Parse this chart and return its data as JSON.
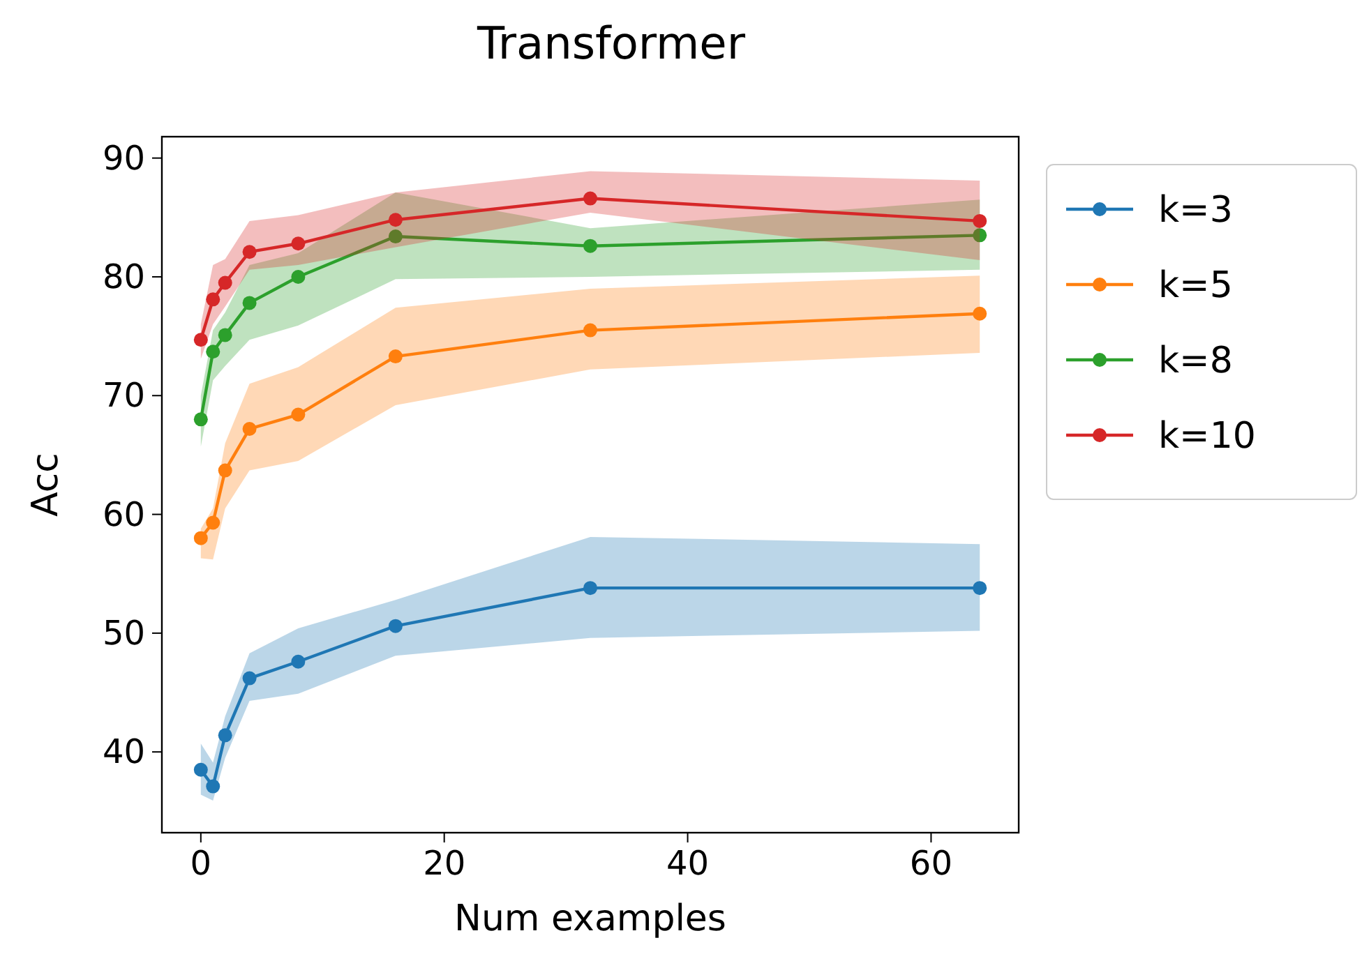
{
  "chart_data": {
    "type": "line",
    "title": "Transformer",
    "xlabel": "Num examples",
    "ylabel": "Acc",
    "xlim": [
      -3.2,
      67.2
    ],
    "ylim": [
      33.2,
      91.8
    ],
    "xticks": [
      0,
      20,
      40,
      60
    ],
    "yticks": [
      40,
      50,
      60,
      70,
      80,
      90
    ],
    "grid": false,
    "legend": "right",
    "marker": "circle",
    "line_style": "solid",
    "x": [
      0,
      1,
      2,
      4,
      8,
      16,
      32,
      64
    ],
    "series": [
      {
        "name": "k=3",
        "color": "#1f77b4",
        "values": [
          38.5,
          37.1,
          41.4,
          46.2,
          47.6,
          50.6,
          53.8,
          53.8
        ],
        "lower": [
          36.4,
          35.9,
          39.5,
          44.3,
          44.9,
          48.1,
          49.6,
          50.2
        ],
        "upper": [
          40.7,
          39.1,
          43,
          48.3,
          50.4,
          52.8,
          58.1,
          57.5
        ]
      },
      {
        "name": "k=5",
        "color": "#ff7f0e",
        "values": [
          58,
          59.3,
          63.7,
          67.2,
          68.4,
          73.3,
          75.5,
          76.9
        ],
        "lower": [
          56.3,
          56.2,
          60.5,
          63.7,
          64.5,
          69.2,
          72.2,
          73.6
        ],
        "upper": [
          58.8,
          60.5,
          66,
          71,
          72.4,
          77.4,
          79,
          80.1
        ]
      },
      {
        "name": "k=8",
        "color": "#2ca02c",
        "values": [
          68,
          73.7,
          75.1,
          77.8,
          80,
          83.4,
          82.6,
          83.5
        ],
        "lower": [
          65.7,
          71.3,
          72.5,
          74.7,
          75.9,
          79.8,
          80,
          80.6
        ],
        "upper": [
          70,
          75.5,
          77,
          81,
          82,
          87.1,
          84.1,
          86.5
        ]
      },
      {
        "name": "k=10",
        "color": "#d62728",
        "values": [
          74.7,
          78.1,
          79.5,
          82.1,
          82.8,
          84.8,
          86.6,
          84.7
        ],
        "lower": [
          73.1,
          76,
          77.5,
          80.6,
          81,
          82.5,
          85.4,
          81.4
        ],
        "upper": [
          76,
          81,
          81.5,
          84.7,
          85.2,
          87.1,
          88.9,
          88.1
        ]
      }
    ]
  }
}
